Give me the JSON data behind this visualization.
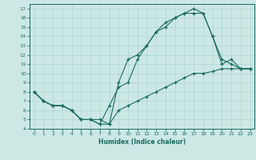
{
  "xlabel": "Humidex (Indice chaleur)",
  "background_color": "#cce8e5",
  "grid_color": "#afd4d0",
  "line_color": "#1a6b60",
  "xlim": [
    -0.5,
    23.5
  ],
  "ylim": [
    4,
    17.5
  ],
  "xticks": [
    0,
    1,
    2,
    3,
    4,
    5,
    6,
    7,
    8,
    9,
    10,
    11,
    12,
    13,
    14,
    15,
    16,
    17,
    18,
    19,
    20,
    21,
    22,
    23
  ],
  "yticks": [
    4,
    5,
    6,
    7,
    8,
    9,
    10,
    11,
    12,
    13,
    14,
    15,
    16,
    17
  ],
  "line1_x": [
    0,
    1,
    2,
    3,
    4,
    5,
    6,
    7,
    8,
    9,
    10,
    11,
    12,
    13,
    14,
    15,
    16,
    17,
    18,
    19,
    20,
    21,
    22,
    23
  ],
  "line1_y": [
    8.0,
    7.0,
    6.5,
    6.5,
    6.0,
    5.0,
    5.0,
    5.0,
    4.5,
    6.0,
    6.5,
    7.0,
    7.5,
    8.0,
    8.5,
    9.0,
    9.5,
    10.0,
    10.0,
    10.2,
    10.5,
    10.5,
    10.5,
    10.5
  ],
  "line2_x": [
    0,
    1,
    2,
    3,
    4,
    5,
    6,
    7,
    8,
    9,
    10,
    11,
    12,
    13,
    14,
    15,
    16,
    17,
    18,
    19,
    20,
    21,
    22,
    23
  ],
  "line2_y": [
    8.0,
    7.0,
    6.5,
    6.5,
    6.0,
    5.0,
    5.0,
    4.5,
    4.5,
    9.0,
    11.5,
    12.0,
    13.0,
    14.5,
    15.5,
    16.0,
    16.5,
    17.0,
    16.5,
    14.0,
    11.0,
    11.5,
    10.5,
    10.5
  ],
  "line3_x": [
    0,
    1,
    2,
    3,
    4,
    5,
    6,
    7,
    8,
    9,
    10,
    11,
    12,
    13,
    14,
    15,
    16,
    17,
    18,
    19,
    20,
    21,
    22,
    23
  ],
  "line3_y": [
    8.0,
    7.0,
    6.5,
    6.5,
    6.0,
    5.0,
    5.0,
    4.5,
    6.5,
    8.5,
    9.0,
    11.5,
    13.0,
    14.5,
    15.0,
    16.0,
    16.5,
    16.5,
    16.5,
    14.0,
    11.5,
    11.0,
    10.5,
    10.5
  ]
}
